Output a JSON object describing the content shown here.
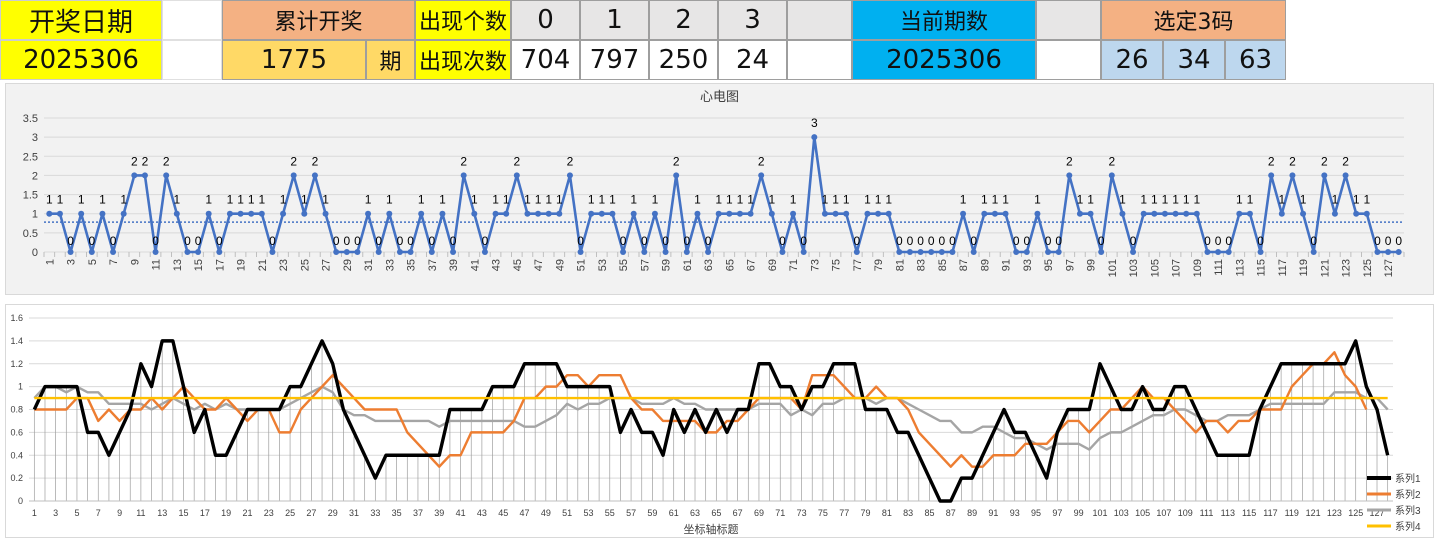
{
  "header": {
    "draw_date_label": "开奖日期",
    "draw_date_value": "2025306",
    "cumulative_label": "累计开奖",
    "cumulative_value": "1775",
    "period_unit": "期",
    "count_label": "出现个数",
    "times_label": "出现次数",
    "digits": [
      "0",
      "1",
      "2",
      "3"
    ],
    "digit_counts": [
      "704",
      "797",
      "250",
      "24"
    ],
    "current_period_label": "当前期数",
    "current_period_value": "2025306",
    "selected_label": "选定3码",
    "selected_numbers": [
      "26",
      "34",
      "63"
    ]
  },
  "colors": {
    "yellow": "#ffff00",
    "salmon": "#f4b183",
    "gold": "#ffd966",
    "cyan": "#00b0f0",
    "light_blue": "#bdd7ee",
    "grey": "#e7e6e6",
    "series_blue": "#4472c4",
    "series1": "#000000",
    "series2": "#ed7d31",
    "series3": "#a5a5a5",
    "series4": "#ffc000"
  },
  "chart_data": [
    {
      "type": "line",
      "title": "心电图",
      "x_start": 1,
      "ylim": [
        0,
        3.5
      ],
      "yticks": [
        0,
        0.5,
        1,
        1.5,
        2,
        2.5,
        3,
        3.5
      ],
      "ytick_labels": [
        "0",
        "0.5",
        "1",
        "1.5",
        "2",
        "2.5",
        "3",
        "3.5"
      ],
      "grid": true,
      "trendline": true,
      "trend_value": 0.78,
      "data_labels": true,
      "series": [
        {
          "values": [
            1,
            1,
            0,
            1,
            0,
            1,
            0,
            1,
            2,
            2,
            0,
            2,
            1,
            0,
            0,
            1,
            0,
            1,
            1,
            1,
            1,
            0,
            1,
            2,
            1,
            2,
            1,
            0,
            0,
            0,
            1,
            0,
            1,
            0,
            0,
            1,
            0,
            1,
            0,
            2,
            1,
            0,
            1,
            1,
            2,
            1,
            1,
            1,
            1,
            2,
            0,
            1,
            1,
            1,
            0,
            1,
            0,
            1,
            0,
            2,
            0,
            1,
            0,
            1,
            1,
            1,
            1,
            2,
            1,
            0,
            1,
            0,
            3,
            1,
            1,
            1,
            0,
            1,
            1,
            1,
            0,
            0,
            0,
            0,
            0,
            0,
            1,
            0,
            1,
            1,
            1,
            0,
            0,
            1,
            0,
            0,
            2,
            1,
            1,
            0,
            2,
            1,
            0,
            1,
            1,
            1,
            1,
            1,
            1,
            0,
            0,
            0,
            1,
            1,
            0,
            2,
            1,
            2,
            1,
            0,
            2,
            1,
            2,
            1,
            1,
            0,
            0,
            0
          ]
        }
      ]
    },
    {
      "type": "line",
      "xlabel": "坐标轴标题",
      "x_start": 1,
      "ylim": [
        0,
        1.6
      ],
      "yticks": [
        0,
        0.2,
        0.4,
        0.6,
        0.8,
        1,
        1.2,
        1.4,
        1.6
      ],
      "ytick_labels": [
        "0",
        "0.2",
        "0.4",
        "0.6",
        "0.8",
        "1",
        "1.2",
        "1.4",
        "1.6"
      ],
      "legend_position": "bottom-right",
      "vertical_gridlines": true,
      "series": [
        {
          "name": "系列1",
          "values": [
            0.8,
            1,
            1,
            1,
            1,
            0.6,
            0.6,
            0.4,
            0.6,
            0.8,
            1.2,
            1,
            1.4,
            1.4,
            1,
            0.6,
            0.8,
            0.4,
            0.4,
            0.6,
            0.8,
            0.8,
            0.8,
            0.8,
            1,
            1,
            1.2,
            1.4,
            1.2,
            0.8,
            0.6,
            0.4,
            0.2,
            0.4,
            0.4,
            0.4,
            0.4,
            0.4,
            0.4,
            0.8,
            0.8,
            0.8,
            0.8,
            1,
            1,
            1,
            1.2,
            1.2,
            1.2,
            1.2,
            1,
            1,
            1,
            1,
            1,
            0.6,
            0.8,
            0.6,
            0.6,
            0.4,
            0.8,
            0.6,
            0.8,
            0.6,
            0.8,
            0.6,
            0.8,
            0.8,
            1.2,
            1.2,
            1,
            1,
            0.8,
            1,
            1,
            1.2,
            1.2,
            1.2,
            0.8,
            0.8,
            0.8,
            0.6,
            0.6,
            0.4,
            0.2,
            0,
            0,
            0.2,
            0.2,
            0.4,
            0.6,
            0.8,
            0.6,
            0.6,
            0.4,
            0.2,
            0.6,
            0.8,
            0.8,
            0.8,
            1.2,
            1,
            0.8,
            0.8,
            1,
            0.8,
            0.8,
            1,
            1,
            0.8,
            0.6,
            0.4,
            0.4,
            0.4,
            0.4,
            0.8,
            1,
            1.2,
            1.2,
            1.2,
            1.2,
            1.2,
            1.2,
            1.2,
            1.4,
            1,
            0.8,
            0.4
          ]
        },
        {
          "name": "系列2",
          "values": [
            0.8,
            0.8,
            0.8,
            0.8,
            0.9,
            0.9,
            0.7,
            0.8,
            0.7,
            0.8,
            0.8,
            0.9,
            0.8,
            0.9,
            1,
            0.9,
            0.8,
            0.8,
            0.9,
            0.8,
            0.7,
            0.8,
            0.8,
            0.6,
            0.6,
            0.8,
            0.9,
            1,
            1.1,
            1,
            0.9,
            0.8,
            0.8,
            0.8,
            0.8,
            0.6,
            0.5,
            0.4,
            0.3,
            0.4,
            0.4,
            0.6,
            0.6,
            0.6,
            0.6,
            0.7,
            0.9,
            0.9,
            1,
            1,
            1.1,
            1.1,
            1,
            1.1,
            1.1,
            1.1,
            0.9,
            0.8,
            0.8,
            0.7,
            0.7,
            0.7,
            0.7,
            0.6,
            0.6,
            0.7,
            0.7,
            0.8,
            0.9,
            0.9,
            0.9,
            0.9,
            0.8,
            1.1,
            1.1,
            1.1,
            1,
            0.9,
            0.9,
            1,
            0.9,
            0.9,
            0.8,
            0.6,
            0.5,
            0.4,
            0.3,
            0.4,
            0.3,
            0.3,
            0.4,
            0.4,
            0.4,
            0.5,
            0.5,
            0.5,
            0.6,
            0.7,
            0.7,
            0.6,
            0.7,
            0.8,
            0.8,
            0.9,
            1,
            0.9,
            0.9,
            0.8,
            0.7,
            0.6,
            0.7,
            0.7,
            0.6,
            0.7,
            0.7,
            0.8,
            0.8,
            0.8,
            1,
            1.1,
            1.2,
            1.2,
            1.3,
            1.1,
            1,
            0.8
          ]
        },
        {
          "name": "系列3",
          "values": [
            0.9,
            1,
            1,
            0.95,
            1,
            0.95,
            0.95,
            0.85,
            0.85,
            0.85,
            0.85,
            0.8,
            0.85,
            0.9,
            0.85,
            0.8,
            0.85,
            0.8,
            0.85,
            0.8,
            0.8,
            0.8,
            0.8,
            0.8,
            0.85,
            0.9,
            0.95,
            1,
            0.95,
            0.8,
            0.75,
            0.75,
            0.7,
            0.7,
            0.7,
            0.7,
            0.7,
            0.7,
            0.65,
            0.7,
            0.7,
            0.7,
            0.7,
            0.7,
            0.7,
            0.7,
            0.65,
            0.65,
            0.7,
            0.75,
            0.85,
            0.8,
            0.85,
            0.85,
            0.9,
            0.9,
            0.9,
            0.85,
            0.85,
            0.85,
            0.9,
            0.85,
            0.85,
            0.8,
            0.8,
            0.8,
            0.8,
            0.8,
            0.85,
            0.85,
            0.85,
            0.75,
            0.8,
            0.75,
            0.85,
            0.85,
            0.9,
            0.9,
            0.9,
            0.85,
            0.9,
            0.9,
            0.85,
            0.8,
            0.75,
            0.7,
            0.7,
            0.6,
            0.6,
            0.65,
            0.65,
            0.6,
            0.55,
            0.55,
            0.5,
            0.45,
            0.5,
            0.5,
            0.5,
            0.45,
            0.55,
            0.6,
            0.6,
            0.65,
            0.7,
            0.75,
            0.75,
            0.8,
            0.8,
            0.75,
            0.7,
            0.7,
            0.75,
            0.75,
            0.75,
            0.8,
            0.85,
            0.85,
            0.85,
            0.85,
            0.85,
            0.85,
            0.95,
            0.95,
            0.95,
            0.9,
            0.9,
            0.8
          ]
        },
        {
          "name": "系列4",
          "values": [
            0.9,
            0.9,
            0.9,
            0.9,
            0.9,
            0.9,
            0.9,
            0.9,
            0.9,
            0.9,
            0.9,
            0.9,
            0.9,
            0.9,
            0.9,
            0.9,
            0.9,
            0.9,
            0.9,
            0.9,
            0.9,
            0.9,
            0.9,
            0.9,
            0.9,
            0.9,
            0.9,
            0.9,
            0.9,
            0.9,
            0.9,
            0.9,
            0.9,
            0.9,
            0.9,
            0.9,
            0.9,
            0.9,
            0.9,
            0.9,
            0.9,
            0.9,
            0.9,
            0.9,
            0.9,
            0.9,
            0.9,
            0.9,
            0.9,
            0.9,
            0.9,
            0.9,
            0.9,
            0.9,
            0.9,
            0.9,
            0.9,
            0.9,
            0.9,
            0.9,
            0.9,
            0.9,
            0.9,
            0.9,
            0.9,
            0.9,
            0.9,
            0.9,
            0.9,
            0.9,
            0.9,
            0.9,
            0.9,
            0.9,
            0.9,
            0.9,
            0.9,
            0.9,
            0.9,
            0.9,
            0.9,
            0.9,
            0.9,
            0.9,
            0.9,
            0.9,
            0.9,
            0.9,
            0.9,
            0.9,
            0.9,
            0.9,
            0.9,
            0.9,
            0.9,
            0.9,
            0.9,
            0.9,
            0.9,
            0.9,
            0.9,
            0.9,
            0.9,
            0.9,
            0.9,
            0.9,
            0.9,
            0.9,
            0.9,
            0.9,
            0.9,
            0.9,
            0.9,
            0.9,
            0.9,
            0.9,
            0.9,
            0.9,
            0.9,
            0.9,
            0.9,
            0.9,
            0.9,
            0.9,
            0.9,
            0.9,
            0.9,
            0.9
          ]
        }
      ]
    }
  ]
}
